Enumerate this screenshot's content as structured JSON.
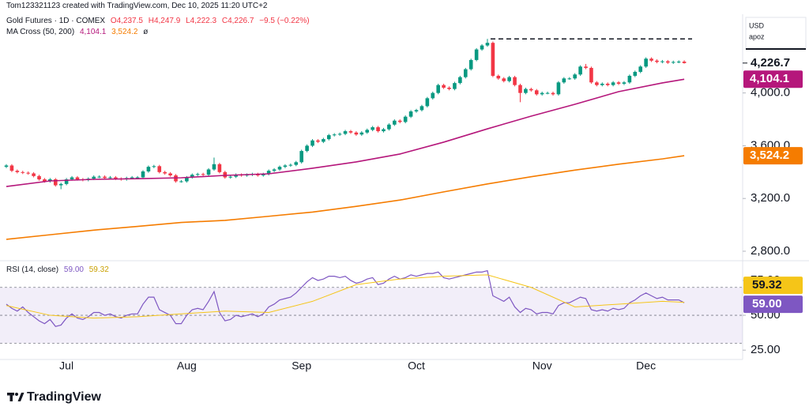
{
  "header": {
    "author_line": "Tom123321123 created with TradingView.com, Dec 10, 2025 11:20 UTC+2"
  },
  "price_axis": {
    "currency": "USD",
    "unit": "apoz"
  },
  "footer": {
    "logo": "TradingView"
  },
  "chart_data": [
    {
      "type": "candlestick",
      "title": "Gold Futures · 1D · COMEX",
      "ohlc_legend": [
        "O4,237.5",
        "H4,247.9",
        "L4,222.3",
        "C4,226.7",
        "−9.5 (−0.22%)"
      ],
      "categories": [
        null,
        null,
        null,
        null,
        null,
        null,
        null,
        null,
        null,
        null,
        null,
        "Jul",
        null,
        null,
        null,
        null,
        null,
        null,
        null,
        null,
        null,
        null,
        null,
        null,
        null,
        null,
        null,
        null,
        null,
        null,
        null,
        null,
        null,
        "Aug",
        null,
        null,
        null,
        null,
        null,
        null,
        null,
        null,
        null,
        null,
        null,
        null,
        null,
        null,
        null,
        null,
        null,
        null,
        null,
        null,
        "Sep",
        null,
        null,
        null,
        null,
        null,
        null,
        null,
        null,
        null,
        null,
        null,
        null,
        null,
        null,
        null,
        null,
        null,
        null,
        null,
        null,
        "Oct",
        null,
        null,
        null,
        null,
        null,
        null,
        null,
        null,
        null,
        null,
        null,
        null,
        null,
        null,
        null,
        null,
        null,
        null,
        null,
        null,
        null,
        null,
        "Nov",
        null,
        null,
        null,
        null,
        null,
        null,
        null,
        null,
        null,
        null,
        null,
        null,
        null,
        null,
        null,
        null,
        null,
        null,
        "Dec",
        null,
        null,
        null,
        null,
        null,
        null,
        null
      ],
      "series": [
        {
          "name": "Gold Futures",
          "up_color": "#089981",
          "down_color": "#f23645",
          "last_label": "4,226.7",
          "open": [
            3440,
            3450,
            3410,
            3400,
            3395,
            3390,
            3370,
            3345,
            3330,
            3345,
            3300,
            3310,
            3345,
            3360,
            3345,
            3340,
            3350,
            3365,
            3365,
            3355,
            3360,
            3350,
            3345,
            3355,
            3360,
            3360,
            3405,
            3440,
            3445,
            3400,
            3390,
            3375,
            3330,
            3330,
            3360,
            3380,
            3385,
            3380,
            3420,
            3460,
            3400,
            3360,
            3365,
            3380,
            3375,
            3380,
            3385,
            3375,
            3385,
            3410,
            3420,
            3440,
            3450,
            3455,
            3475,
            3560,
            3600,
            3640,
            3630,
            3650,
            3680,
            3685,
            3690,
            3710,
            3700,
            3685,
            3700,
            3720,
            3740,
            3710,
            3725,
            3760,
            3790,
            3780,
            3820,
            3860,
            3870,
            3900,
            3960,
            4000,
            4060,
            4040,
            4030,
            4075,
            4120,
            4180,
            4250,
            4330,
            4360,
            4380,
            4130,
            4110,
            4090,
            4120,
            4060,
            4000,
            4030,
            4020,
            3990,
            4000,
            4000,
            3990,
            4080,
            4110,
            4110,
            4140,
            4200,
            4190,
            4080,
            4060,
            4070,
            4060,
            4080,
            4070,
            4080,
            4130,
            4160,
            4200,
            4260,
            4245,
            4235,
            4240,
            4230,
            4235,
            4237.5
          ],
          "high": [
            3460,
            3460,
            3420,
            3410,
            3405,
            3400,
            3380,
            3355,
            3355,
            3355,
            3320,
            3355,
            3370,
            3370,
            3355,
            3360,
            3375,
            3375,
            3375,
            3370,
            3370,
            3360,
            3365,
            3370,
            3370,
            3415,
            3450,
            3455,
            3455,
            3410,
            3400,
            3385,
            3340,
            3370,
            3390,
            3395,
            3395,
            3430,
            3510,
            3470,
            3410,
            3375,
            3390,
            3390,
            3390,
            3395,
            3395,
            3395,
            3420,
            3430,
            3450,
            3460,
            3465,
            3485,
            3570,
            3610,
            3650,
            3650,
            3660,
            3690,
            3695,
            3700,
            3720,
            3720,
            3710,
            3710,
            3730,
            3750,
            3750,
            3735,
            3770,
            3800,
            3800,
            3830,
            3870,
            3880,
            3910,
            3970,
            4010,
            4070,
            4070,
            4050,
            4085,
            4130,
            4190,
            4260,
            4340,
            4370,
            4410,
            4390,
            4140,
            4120,
            4130,
            4130,
            4070,
            4040,
            4040,
            4030,
            4010,
            4010,
            4010,
            4090,
            4120,
            4120,
            4150,
            4210,
            4220,
            4200,
            4090,
            4080,
            4080,
            4090,
            4090,
            4090,
            4140,
            4170,
            4210,
            4270,
            4270,
            4255,
            4250,
            4250,
            4245,
            4247.5,
            4247.9
          ],
          "low": [
            3430,
            3400,
            3390,
            3385,
            3380,
            3360,
            3335,
            3320,
            3320,
            3290,
            3270,
            3300,
            3335,
            3335,
            3330,
            3330,
            3340,
            3355,
            3345,
            3345,
            3340,
            3335,
            3335,
            3345,
            3350,
            3350,
            3395,
            3430,
            3390,
            3380,
            3365,
            3320,
            3320,
            3320,
            3350,
            3370,
            3370,
            3370,
            3410,
            3390,
            3350,
            3350,
            3355,
            3365,
            3365,
            3370,
            3365,
            3365,
            3375,
            3400,
            3410,
            3430,
            3440,
            3445,
            3465,
            3550,
            3590,
            3620,
            3620,
            3640,
            3670,
            3675,
            3680,
            3690,
            3675,
            3675,
            3690,
            3710,
            3700,
            3700,
            3715,
            3750,
            3770,
            3770,
            3810,
            3850,
            3860,
            3890,
            3950,
            3990,
            4030,
            4020,
            4020,
            4065,
            4110,
            4170,
            4240,
            4320,
            4350,
            4120,
            4100,
            4080,
            4080,
            4050,
            3930,
            3990,
            4010,
            3980,
            3980,
            3990,
            3980,
            3980,
            4070,
            4100,
            4100,
            4130,
            4180,
            4070,
            4050,
            4050,
            4050,
            4050,
            4060,
            4060,
            4070,
            4120,
            4150,
            4190,
            4235,
            4225,
            4225,
            4220,
            4220,
            4225,
            4222.3
          ],
          "close": [
            3450,
            3410,
            3400,
            3395,
            3390,
            3370,
            3345,
            3330,
            3345,
            3300,
            3310,
            3345,
            3360,
            3345,
            3340,
            3350,
            3365,
            3365,
            3355,
            3360,
            3350,
            3345,
            3355,
            3360,
            3360,
            3405,
            3440,
            3445,
            3400,
            3390,
            3375,
            3330,
            3330,
            3360,
            3380,
            3385,
            3380,
            3420,
            3460,
            3400,
            3360,
            3365,
            3380,
            3375,
            3380,
            3385,
            3375,
            3385,
            3410,
            3420,
            3440,
            3450,
            3455,
            3475,
            3560,
            3600,
            3640,
            3630,
            3650,
            3680,
            3685,
            3690,
            3710,
            3700,
            3685,
            3700,
            3720,
            3740,
            3710,
            3725,
            3760,
            3790,
            3780,
            3820,
            3860,
            3870,
            3900,
            3960,
            4000,
            4060,
            4040,
            4030,
            4075,
            4120,
            4180,
            4250,
            4330,
            4360,
            4380,
            4130,
            4110,
            4090,
            4120,
            4060,
            4000,
            4030,
            4020,
            3990,
            4000,
            4000,
            3990,
            4080,
            4110,
            4110,
            4140,
            4200,
            4190,
            4080,
            4060,
            4070,
            4060,
            4080,
            4070,
            4080,
            4130,
            4160,
            4200,
            4260,
            4245,
            4235,
            4240,
            4230,
            4235,
            4237.5,
            4226.7
          ]
        }
      ],
      "indicator": {
        "name": "MA Cross (50, 200)",
        "suffix": "ø",
        "lines": [
          {
            "color": "#b5177b",
            "value_label": "4,104.1",
            "x": [
              0,
              8,
              16,
              24,
              32,
              40,
              48,
              56,
              64,
              72,
              80,
              88,
              96,
              104,
              112,
              120,
              124
            ],
            "values": [
              3291,
              3333,
              3345,
              3350,
              3357,
              3375,
              3387,
              3429,
              3477,
              3537,
              3627,
              3728,
              3824,
              3914,
              4010,
              4076,
              4104.1
            ]
          },
          {
            "color": "#f57c00",
            "value_label": "3,524.2",
            "x": [
              0,
              8,
              16,
              24,
              32,
              40,
              48,
              56,
              64,
              72,
              80,
              88,
              96,
              104,
              112,
              120,
              124
            ],
            "values": [
              2890,
              2925,
              2960,
              2988,
              3018,
              3034,
              3065,
              3097,
              3140,
              3188,
              3250,
              3310,
              3365,
              3415,
              3460,
              3500,
              3524.2
            ]
          }
        ]
      },
      "high_line": true,
      "ylim": [
        2740,
        4573
      ],
      "yticks": [
        {
          "value": 2800,
          "label": "2,800.0"
        },
        {
          "value": 3200,
          "label": "3,200.0"
        },
        {
          "value": 3600,
          "label": "3,600.0"
        },
        {
          "value": 4000,
          "label": "4,000.0"
        }
      ]
    },
    {
      "type": "line",
      "title": "RSI (14, close)",
      "series": [
        {
          "color": "#7e57c2",
          "value_label": "59.00",
          "values": [
            58,
            55,
            53,
            56,
            52,
            49,
            46,
            44,
            47,
            42,
            43,
            48,
            51,
            48,
            47,
            49,
            52,
            52,
            50,
            51,
            49,
            48,
            50,
            51,
            51,
            58,
            63,
            63,
            54,
            52,
            50,
            44,
            44,
            50,
            54,
            55,
            54,
            60,
            67,
            52,
            46,
            47,
            50,
            49,
            50,
            51,
            49,
            51,
            56,
            58,
            61,
            62,
            63,
            66,
            70,
            74,
            77,
            75,
            76,
            78,
            78,
            77,
            78,
            75,
            73,
            74,
            76,
            77,
            72,
            73,
            76,
            78,
            76,
            77,
            79,
            78,
            79,
            80,
            80,
            81,
            77,
            76,
            77,
            78,
            79,
            80,
            81,
            81,
            82,
            64,
            62,
            60,
            63,
            56,
            52,
            55,
            54,
            51,
            52,
            52,
            51,
            57,
            59,
            59,
            61,
            63,
            62,
            54,
            53,
            54,
            53,
            55,
            54,
            55,
            59,
            61,
            64,
            66,
            64,
            62,
            63,
            61,
            61,
            61,
            59
          ]
        },
        {
          "color": "#f5c518",
          "value_label": "59.32",
          "x": [
            0,
            8,
            16,
            24,
            32,
            40,
            48,
            56,
            64,
            72,
            80,
            88,
            96,
            104,
            112,
            120,
            124
          ],
          "values": [
            57,
            50,
            48,
            49,
            51,
            53,
            52,
            60,
            72,
            76,
            78,
            79,
            70,
            56,
            58,
            60,
            59.32
          ]
        }
      ],
      "bands": [
        70,
        50,
        30
      ],
      "ylim": [
        20,
        88
      ],
      "yticks": [
        {
          "value": 25,
          "label": "25.00"
        },
        {
          "value": 50,
          "label": "50.00"
        },
        {
          "value": 75,
          "label": "75.00"
        }
      ]
    }
  ]
}
